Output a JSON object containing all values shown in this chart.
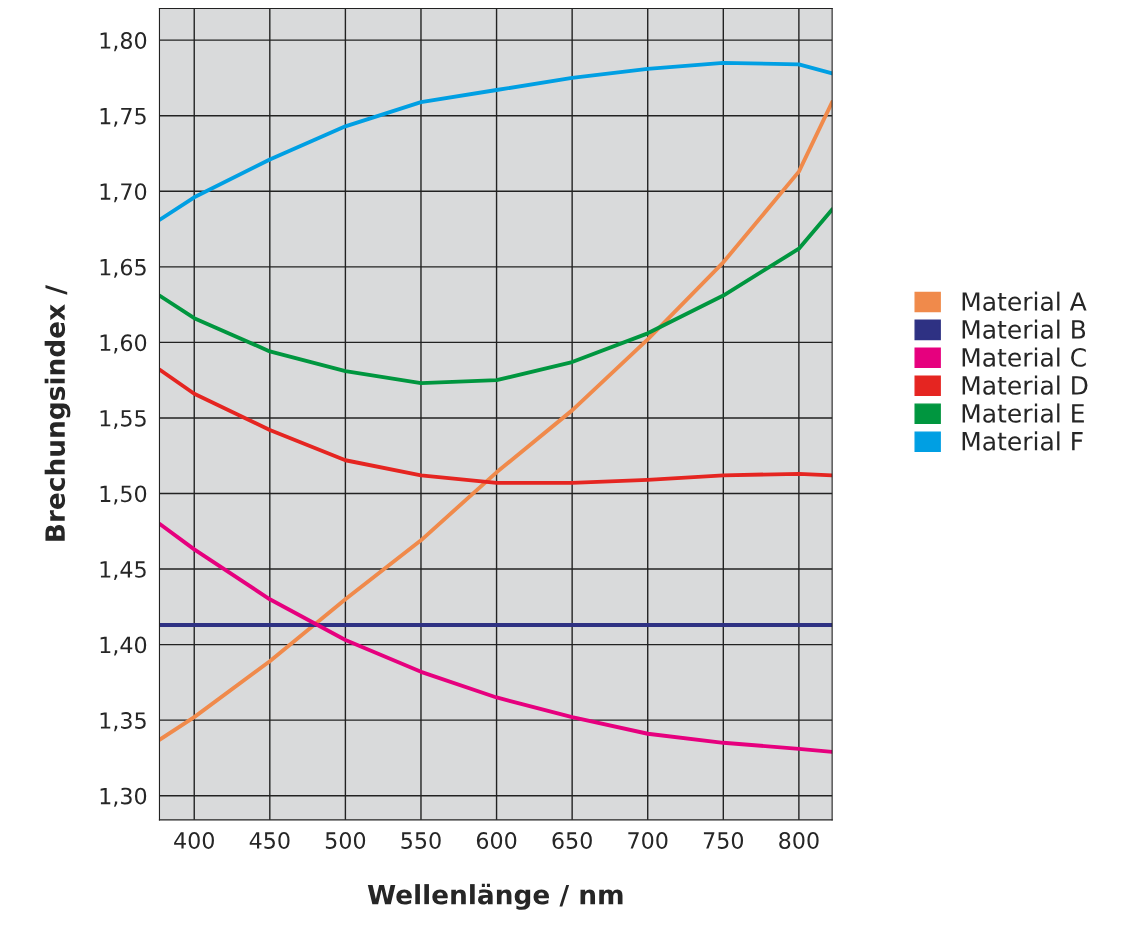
{
  "chart_data": {
    "type": "line",
    "xlabel": "Wellenlänge / nm",
    "ylabel": "Brechungsindex /",
    "x": [
      377,
      400,
      450,
      500,
      550,
      600,
      650,
      700,
      750,
      800,
      822
    ],
    "series": [
      {
        "name": "Material A",
        "color": "#f08a4b",
        "values": [
          1.337,
          1.352,
          1.389,
          1.43,
          1.469,
          1.514,
          1.555,
          1.602,
          1.653,
          1.713,
          1.759
        ]
      },
      {
        "name": "Material B",
        "color": "#2e3183",
        "values": [
          1.413,
          1.413,
          1.413,
          1.413,
          1.413,
          1.413,
          1.413,
          1.413,
          1.413,
          1.413,
          1.413
        ]
      },
      {
        "name": "Material C",
        "color": "#e6007e",
        "values": [
          1.48,
          1.463,
          1.43,
          1.403,
          1.382,
          1.365,
          1.352,
          1.341,
          1.335,
          1.331,
          1.329
        ]
      },
      {
        "name": "Material D",
        "color": "#e52521",
        "values": [
          1.582,
          1.566,
          1.542,
          1.522,
          1.512,
          1.507,
          1.507,
          1.509,
          1.512,
          1.513,
          1.512
        ]
      },
      {
        "name": "Material E",
        "color": "#00963f",
        "values": [
          1.631,
          1.616,
          1.594,
          1.581,
          1.573,
          1.575,
          1.587,
          1.606,
          1.631,
          1.662,
          1.688
        ]
      },
      {
        "name": "Material F",
        "color": "#009fe3",
        "values": [
          1.681,
          1.696,
          1.721,
          1.743,
          1.759,
          1.767,
          1.775,
          1.781,
          1.785,
          1.784,
          1.778
        ]
      }
    ],
    "xlim": [
      377,
      822
    ],
    "xticks": [
      400,
      450,
      500,
      550,
      600,
      650,
      700,
      750,
      800
    ],
    "ylim": [
      1.284,
      1.821
    ],
    "yticks": [
      {
        "value": 1.3,
        "label": "1,30"
      },
      {
        "value": 1.35,
        "label": "1,35"
      },
      {
        "value": 1.4,
        "label": "1,40"
      },
      {
        "value": 1.45,
        "label": "1,45"
      },
      {
        "value": 1.5,
        "label": "1,50"
      },
      {
        "value": 1.55,
        "label": "1,55"
      },
      {
        "value": 1.6,
        "label": "1,60"
      },
      {
        "value": 1.65,
        "label": "1,65"
      },
      {
        "value": 1.7,
        "label": "1,70"
      },
      {
        "value": 1.75,
        "label": "1,75"
      },
      {
        "value": 1.8,
        "label": "1,80"
      }
    ],
    "grid": true,
    "legend": "right",
    "marker": "none",
    "line_style": "solid"
  }
}
